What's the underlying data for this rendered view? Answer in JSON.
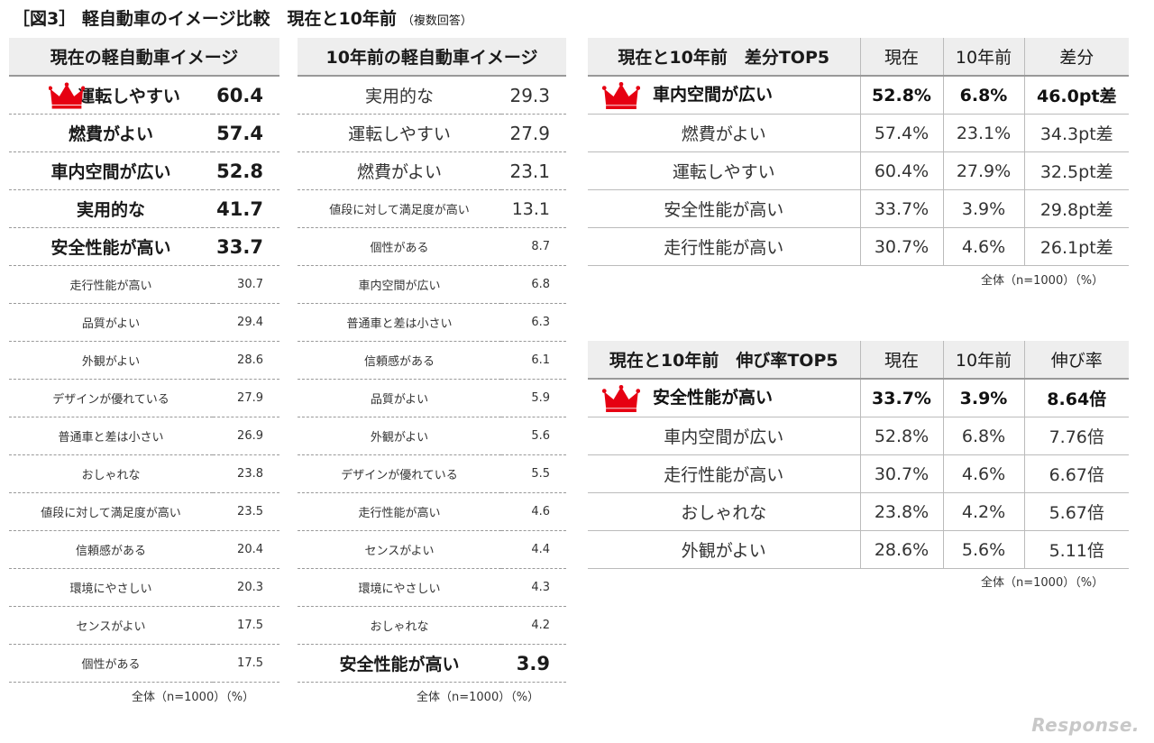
{
  "title": {
    "main": "［図3］ 軽自動車のイメージ比較　現在と10年前",
    "sub": "（複数回答）"
  },
  "note": "全体（n=1000）（%）",
  "crown_color": "#e60012",
  "current": {
    "header": "現在の軽自動車イメージ",
    "rows": [
      {
        "label": "運転しやすい",
        "value": "60.4",
        "style": "big",
        "crown": true
      },
      {
        "label": "燃費がよい",
        "value": "57.4",
        "style": "big"
      },
      {
        "label": "車内空間が広い",
        "value": "52.8",
        "style": "big"
      },
      {
        "label": "実用的な",
        "value": "41.7",
        "style": "big"
      },
      {
        "label": "安全性能が高い",
        "value": "33.7",
        "style": "big"
      },
      {
        "label": "走行性能が高い",
        "value": "30.7",
        "style": "sml"
      },
      {
        "label": "品質がよい",
        "value": "29.4",
        "style": "sml"
      },
      {
        "label": "外観がよい",
        "value": "28.6",
        "style": "sml"
      },
      {
        "label": "デザインが優れている",
        "value": "27.9",
        "style": "sml"
      },
      {
        "label": "普通車と差は小さい",
        "value": "26.9",
        "style": "sml"
      },
      {
        "label": "おしゃれな",
        "value": "23.8",
        "style": "sml"
      },
      {
        "label": "値段に対して満足度が高い",
        "value": "23.5",
        "style": "sml"
      },
      {
        "label": "信頼感がある",
        "value": "20.4",
        "style": "sml"
      },
      {
        "label": "環境にやさしい",
        "value": "20.3",
        "style": "sml"
      },
      {
        "label": "センスがよい",
        "value": "17.5",
        "style": "sml"
      },
      {
        "label": "個性がある",
        "value": "17.5",
        "style": "sml"
      }
    ]
  },
  "past": {
    "header": "10年前の軽自動車イメージ",
    "rows": [
      {
        "label": "実用的な",
        "value": "29.3",
        "style": "med"
      },
      {
        "label": "運転しやすい",
        "value": "27.9",
        "style": "med"
      },
      {
        "label": "燃費がよい",
        "value": "23.1",
        "style": "med"
      },
      {
        "label": "値段に対して満足度が高い",
        "value": "13.1",
        "style": "mix"
      },
      {
        "label": "個性がある",
        "value": "8.7",
        "style": "sml"
      },
      {
        "label": "車内空間が広い",
        "value": "6.8",
        "style": "sml"
      },
      {
        "label": "普通車と差は小さい",
        "value": "6.3",
        "style": "sml"
      },
      {
        "label": "信頼感がある",
        "value": "6.1",
        "style": "sml"
      },
      {
        "label": "品質がよい",
        "value": "5.9",
        "style": "sml"
      },
      {
        "label": "外観がよい",
        "value": "5.6",
        "style": "sml"
      },
      {
        "label": "デザインが優れている",
        "value": "5.5",
        "style": "sml"
      },
      {
        "label": "走行性能が高い",
        "value": "4.6",
        "style": "sml"
      },
      {
        "label": "センスがよい",
        "value": "4.4",
        "style": "sml"
      },
      {
        "label": "環境にやさしい",
        "value": "4.3",
        "style": "sml"
      },
      {
        "label": "おしゃれな",
        "value": "4.2",
        "style": "sml"
      },
      {
        "label": "安全性能が高い",
        "value": "3.9",
        "style": "big"
      }
    ]
  },
  "diff_top5": {
    "headers": [
      "現在と10年前　差分TOP5",
      "現在",
      "10年前",
      "差分"
    ],
    "rows": [
      {
        "label": "車内空間が広い",
        "now": "52.8%",
        "past": "6.8%",
        "diff": "46.0pt差",
        "crown": true
      },
      {
        "label": "燃費がよい",
        "now": "57.4%",
        "past": "23.1%",
        "diff": "34.3pt差"
      },
      {
        "label": "運転しやすい",
        "now": "60.4%",
        "past": "27.9%",
        "diff": "32.5pt差"
      },
      {
        "label": "安全性能が高い",
        "now": "33.7%",
        "past": "3.9%",
        "diff": "29.8pt差"
      },
      {
        "label": "走行性能が高い",
        "now": "30.7%",
        "past": "4.6%",
        "diff": "26.1pt差"
      }
    ]
  },
  "growth_top5": {
    "headers": [
      "現在と10年前　伸び率TOP5",
      "現在",
      "10年前",
      "伸び率"
    ],
    "rows": [
      {
        "label": "安全性能が高い",
        "now": "33.7%",
        "past": "3.9%",
        "diff": "8.64倍",
        "crown": true
      },
      {
        "label": "車内空間が広い",
        "now": "52.8%",
        "past": "6.8%",
        "diff": "7.76倍"
      },
      {
        "label": "走行性能が高い",
        "now": "30.7%",
        "past": "4.6%",
        "diff": "6.67倍"
      },
      {
        "label": "おしゃれな",
        "now": "23.8%",
        "past": "4.2%",
        "diff": "5.67倍"
      },
      {
        "label": "外観がよい",
        "now": "28.6%",
        "past": "5.6%",
        "diff": "5.11倍"
      }
    ]
  },
  "watermark": "Response."
}
